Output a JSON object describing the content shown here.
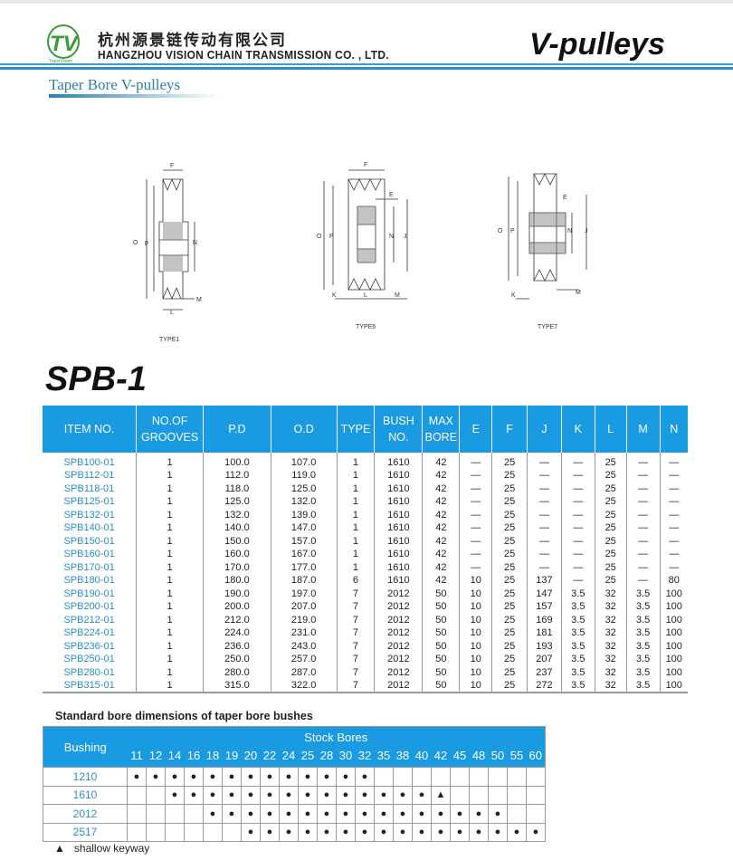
{
  "header": {
    "company_cn": "杭州源景链传动有限公司",
    "company_en": "HANGZHOU VISION CHAIN TRANSMISSION CO. , LTD.",
    "logo_text": "TV TransVision",
    "brand_title": "V-pulleys"
  },
  "section_title": "Taper Bore  V-pulleys",
  "diagrams": [
    {
      "label": "TYPE1",
      "dims": [
        "F",
        "O",
        "p",
        "N",
        "M",
        "L"
      ]
    },
    {
      "label": "TYPE6",
      "dims": [
        "F",
        "E",
        "O",
        "P",
        "N",
        "J",
        "K",
        "L",
        "M"
      ]
    },
    {
      "label": "TYPE7",
      "dims": [
        "E",
        "O",
        "P",
        "N",
        "J",
        "K",
        "M"
      ]
    }
  ],
  "product_title": "SPB-1",
  "main_table": {
    "headers": [
      [
        "ITEM NO."
      ],
      [
        "NO.OF",
        "GROOVES"
      ],
      [
        "P.D"
      ],
      [
        "O.D"
      ],
      [
        "TYPE"
      ],
      [
        "BUSH",
        "NO."
      ],
      [
        "MAX",
        "BORE"
      ],
      [
        "E"
      ],
      [
        "F"
      ],
      [
        "J"
      ],
      [
        "K"
      ],
      [
        "L"
      ],
      [
        "M"
      ],
      [
        "N"
      ]
    ],
    "rows": [
      [
        "SPB100-01",
        "1",
        "100.0",
        "107.0",
        "1",
        "1610",
        "42",
        "—",
        "25",
        "—",
        "—",
        "25",
        "—",
        "—"
      ],
      [
        "SPB112-01",
        "1",
        "112.0",
        "119.0",
        "1",
        "1610",
        "42",
        "—",
        "25",
        "—",
        "—",
        "25",
        "—",
        "—"
      ],
      [
        "SPB118-01",
        "1",
        "118.0",
        "125.0",
        "1",
        "1610",
        "42",
        "—",
        "25",
        "—",
        "—",
        "25",
        "—",
        "—"
      ],
      [
        "SPB125-01",
        "1",
        "125.0",
        "132.0",
        "1",
        "1610",
        "42",
        "—",
        "25",
        "—",
        "—",
        "25",
        "—",
        "—"
      ],
      [
        "SPB132-01",
        "1",
        "132.0",
        "139.0",
        "1",
        "1610",
        "42",
        "—",
        "25",
        "—",
        "—",
        "25",
        "—",
        "—"
      ],
      [
        "SPB140-01",
        "1",
        "140.0",
        "147.0",
        "1",
        "1610",
        "42",
        "—",
        "25",
        "—",
        "—",
        "25",
        "—",
        "—"
      ],
      [
        "SPB150-01",
        "1",
        "150.0",
        "157.0",
        "1",
        "1610",
        "42",
        "—",
        "25",
        "—",
        "—",
        "25",
        "—",
        "—"
      ],
      [
        "SPB160-01",
        "1",
        "160.0",
        "167.0",
        "1",
        "1610",
        "42",
        "—",
        "25",
        "—",
        "—",
        "25",
        "—",
        "—"
      ],
      [
        "SPB170-01",
        "1",
        "170.0",
        "177.0",
        "1",
        "1610",
        "42",
        "—",
        "25",
        "—",
        "—",
        "25",
        "—",
        "—"
      ],
      [
        "SPB180-01",
        "1",
        "180.0",
        "187.0",
        "6",
        "1610",
        "42",
        "10",
        "25",
        "137",
        "—",
        "25",
        "—",
        "80"
      ],
      [
        "SPB190-01",
        "1",
        "190.0",
        "197.0",
        "7",
        "2012",
        "50",
        "10",
        "25",
        "147",
        "3.5",
        "32",
        "3.5",
        "100"
      ],
      [
        "SPB200-01",
        "1",
        "200.0",
        "207.0",
        "7",
        "2012",
        "50",
        "10",
        "25",
        "157",
        "3.5",
        "32",
        "3.5",
        "100"
      ],
      [
        "SPB212-01",
        "1",
        "212.0",
        "219.0",
        "7",
        "2012",
        "50",
        "10",
        "25",
        "169",
        "3.5",
        "32",
        "3.5",
        "100"
      ],
      [
        "SPB224-01",
        "1",
        "224.0",
        "231.0",
        "7",
        "2012",
        "50",
        "10",
        "25",
        "181",
        "3.5",
        "32",
        "3.5",
        "100"
      ],
      [
        "SPB236-01",
        "1",
        "236.0",
        "243.0",
        "7",
        "2012",
        "50",
        "10",
        "25",
        "193",
        "3.5",
        "32",
        "3.5",
        "100"
      ],
      [
        "SPB250-01",
        "1",
        "250.0",
        "257.0",
        "7",
        "2012",
        "50",
        "10",
        "25",
        "207",
        "3.5",
        "32",
        "3.5",
        "100"
      ],
      [
        "SPB280-01",
        "1",
        "280.0",
        "287.0",
        "7",
        "2012",
        "50",
        "10",
        "25",
        "237",
        "3.5",
        "32",
        "3.5",
        "100"
      ],
      [
        "SPB315-01",
        "1",
        "315.0",
        "322.0",
        "7",
        "2012",
        "50",
        "10",
        "25",
        "272",
        "3.5",
        "32",
        "3.5",
        "100"
      ]
    ]
  },
  "bush_table": {
    "title": "Standard bore dimensions of taper bore bushes",
    "bushing_label": "Bushing",
    "stock_label": "Stock Bores",
    "bores": [
      "11",
      "12",
      "14",
      "16",
      "18",
      "19",
      "20",
      "22",
      "24",
      "25",
      "28",
      "30",
      "32",
      "35",
      "38",
      "40",
      "42",
      "45",
      "48",
      "50",
      "55",
      "60"
    ],
    "rows": [
      {
        "bushing": "1210",
        "marks": [
          "●",
          "●",
          "●",
          "●",
          "●",
          "●",
          "●",
          "●",
          "●",
          "●",
          "●",
          "●",
          "●",
          "",
          "",
          "",
          "",
          "",
          "",
          "",
          "",
          ""
        ]
      },
      {
        "bushing": "1610",
        "marks": [
          "",
          "",
          "●",
          "●",
          "●",
          "●",
          "●",
          "●",
          "●",
          "●",
          "●",
          "●",
          "●",
          "●",
          "●",
          "●",
          "▲",
          "",
          "",
          "",
          "",
          ""
        ]
      },
      {
        "bushing": "2012",
        "marks": [
          "",
          "",
          "",
          "",
          "●",
          "●",
          "●",
          "●",
          "●",
          "●",
          "●",
          "●",
          "●",
          "●",
          "●",
          "●",
          "●",
          "●",
          "●",
          "●",
          "",
          ""
        ]
      },
      {
        "bushing": "2517",
        "marks": [
          "",
          "",
          "",
          "",
          "",
          "",
          "●",
          "●",
          "●",
          "●",
          "●",
          "●",
          "●",
          "●",
          "●",
          "●",
          "●",
          "●",
          "●",
          "●",
          "●",
          "●"
        ]
      }
    ]
  },
  "legend": {
    "symbol": "▲",
    "text": "shallow keyway"
  },
  "colors": {
    "accent": "#1a9ae0",
    "item_text": "#2a8ec5",
    "logo_green": "#3a9a3a"
  }
}
